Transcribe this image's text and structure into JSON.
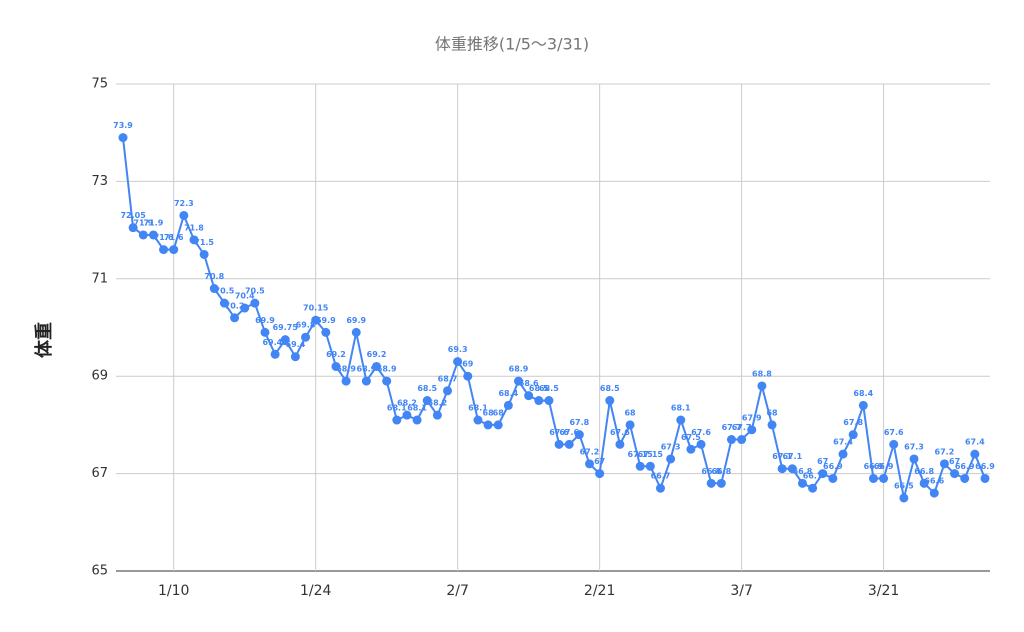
{
  "chart_data": {
    "type": "line",
    "title": "体重推移(1/5〜3/31)",
    "y_label": "体重",
    "categories": [
      null,
      null,
      null,
      null,
      null,
      "1/10",
      null,
      null,
      null,
      null,
      null,
      null,
      null,
      null,
      null,
      null,
      null,
      null,
      null,
      "1/24",
      null,
      null,
      null,
      null,
      null,
      null,
      null,
      null,
      null,
      null,
      null,
      null,
      null,
      "2/7",
      null,
      null,
      null,
      null,
      null,
      null,
      null,
      null,
      null,
      null,
      null,
      null,
      null,
      "2/21",
      null,
      null,
      null,
      null,
      null,
      null,
      null,
      null,
      null,
      null,
      null,
      null,
      null,
      "3/7",
      null,
      null,
      null,
      null,
      null,
      null,
      null,
      null,
      null,
      null,
      null,
      null,
      null,
      "3/21",
      null,
      null,
      null,
      null,
      null,
      null,
      null,
      null,
      null,
      null
    ],
    "series": [
      {
        "name": "体重",
        "color": "#4285f4",
        "values": [
          73.9,
          72.05,
          71.9,
          71.9,
          71.6,
          71.6,
          72.3,
          71.8,
          71.5,
          70.8,
          70.5,
          70.2,
          70.4,
          70.5,
          69.9,
          69.45,
          69.75,
          69.4,
          69.8,
          70.15,
          69.9,
          69.2,
          68.9,
          69.9,
          68.9,
          69.2,
          68.9,
          68.1,
          68.2,
          68.1,
          68.5,
          68.2,
          68.7,
          69.3,
          69,
          68.1,
          68,
          68,
          68.4,
          68.9,
          68.6,
          68.5,
          68.5,
          67.6,
          67.6,
          67.8,
          67.2,
          67,
          68.5,
          67.6,
          68,
          67.15,
          67.15,
          66.7,
          67.3,
          68.1,
          67.5,
          67.6,
          66.8,
          66.8,
          67.7,
          67.7,
          67.9,
          68.8,
          68,
          67.1,
          67.1,
          66.8,
          66.7,
          67,
          66.9,
          67.4,
          67.8,
          68.4,
          66.9,
          66.9,
          67.6,
          66.5,
          67.3,
          66.8,
          66.6,
          67.2,
          67,
          66.9,
          67.4,
          66.9
        ]
      }
    ],
    "ylim": [
      65,
      75
    ],
    "yticks": [
      65,
      67,
      69,
      71,
      73,
      75
    ],
    "grid": true,
    "data_labels": true
  }
}
